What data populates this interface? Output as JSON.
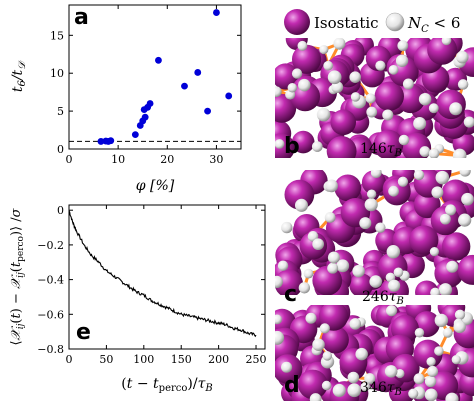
{
  "chart_data": [
    {
      "type": "scatter",
      "panel_label": "a",
      "xlabel": "φ [%]",
      "ylabel": "t₆/t_D",
      "xlim": [
        0,
        35
      ],
      "ylim": [
        0,
        19
      ],
      "xticks": [
        "0",
        "10",
        "20",
        "30"
      ],
      "yticks": [
        "0",
        "5",
        "10",
        "15"
      ],
      "points": [
        {
          "x": 6.5,
          "y": 1.0
        },
        {
          "x": 7.5,
          "y": 1.05
        },
        {
          "x": 8.0,
          "y": 1.0
        },
        {
          "x": 8.5,
          "y": 1.1
        },
        {
          "x": 13.5,
          "y": 1.9
        },
        {
          "x": 14.5,
          "y": 3.1
        },
        {
          "x": 15.0,
          "y": 3.7
        },
        {
          "x": 15.5,
          "y": 4.2
        },
        {
          "x": 15.3,
          "y": 5.2
        },
        {
          "x": 16.0,
          "y": 5.5
        },
        {
          "x": 16.5,
          "y": 6.0
        },
        {
          "x": 18.2,
          "y": 11.7
        },
        {
          "x": 23.5,
          "y": 8.3
        },
        {
          "x": 26.2,
          "y": 10.1
        },
        {
          "x": 28.2,
          "y": 5.0
        },
        {
          "x": 30.0,
          "y": 18.0
        },
        {
          "x": 32.5,
          "y": 7.0
        }
      ],
      "reference_line_y": 1.0,
      "point_color": "#0000d8"
    },
    {
      "type": "line",
      "panel_label": "e",
      "xlabel": "(t − t_perco)/τ_B",
      "ylabel": "⟨𝒳ij(t) − 𝒳ij(t_perco)⟩/σ",
      "xlim": [
        0,
        262
      ],
      "ylim": [
        -0.8,
        0.03
      ],
      "xticks": [
        "0",
        "50",
        "100",
        "150",
        "200",
        "250"
      ],
      "yticks": [
        "0",
        "−0.2",
        "−0.4",
        "−0.6",
        "−0.8"
      ],
      "series": [
        {
          "x": [
            0,
            5,
            10,
            20,
            30,
            40,
            50,
            60,
            70,
            80,
            90,
            100,
            110,
            120,
            130,
            140,
            150,
            160,
            170,
            180,
            190,
            200,
            210,
            220,
            230,
            240,
            250
          ],
          "y": [
            0,
            -0.07,
            -0.12,
            -0.2,
            -0.26,
            -0.3,
            -0.35,
            -0.38,
            -0.41,
            -0.44,
            -0.47,
            -0.49,
            -0.52,
            -0.54,
            -0.56,
            -0.58,
            -0.6,
            -0.61,
            -0.62,
            -0.63,
            -0.64,
            -0.65,
            -0.66,
            -0.68,
            -0.69,
            -0.71,
            -0.72
          ]
        }
      ],
      "line_color": "#000000"
    }
  ],
  "snapshots": {
    "legend": {
      "isostatic_label": "Isostatic",
      "nc_label_prefix": "N",
      "nc_label_sub": "C",
      "nc_label_suffix": " < 6"
    },
    "panels": [
      {
        "letter": "b",
        "time_value": "146",
        "time_unit": "τ",
        "time_sub": "B"
      },
      {
        "letter": "c",
        "time_value": "246",
        "time_unit": "τ",
        "time_sub": "B"
      },
      {
        "letter": "d",
        "time_value": "346",
        "time_unit": "τ",
        "time_sub": "B"
      }
    ],
    "colors": {
      "isostatic": "#b0209e",
      "nc_lt_6": "#eeeeee",
      "bond": "#ff8c2a"
    }
  }
}
